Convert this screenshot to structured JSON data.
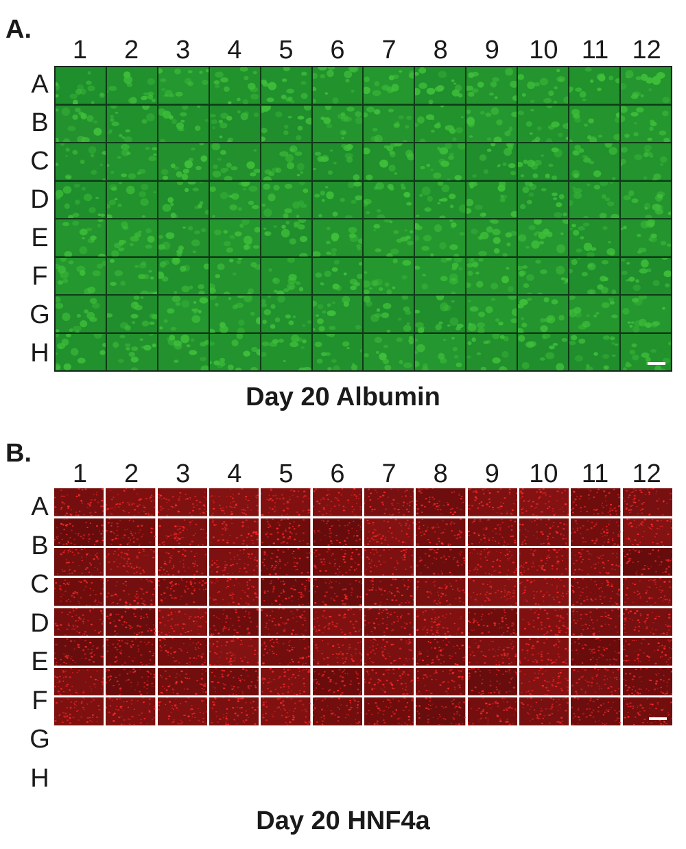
{
  "columns": [
    "1",
    "2",
    "3",
    "4",
    "5",
    "6",
    "7",
    "8",
    "9",
    "10",
    "11",
    "12"
  ],
  "rows": [
    "A",
    "B",
    "C",
    "D",
    "E",
    "F",
    "G",
    "H"
  ],
  "panels": [
    {
      "letter": "A.",
      "caption": "Day 20 Albumin",
      "stain_color": "#3fbf3a",
      "background_color": "#1d8a2c",
      "gridline_color": "#15261a"
    },
    {
      "letter": "B.",
      "caption": "Day 20 HNF4a",
      "stain_color": "#ff2a2a",
      "background_color": "#5a0a0a",
      "gridline_color": "#ffffff"
    }
  ],
  "icons": {
    "scale_bar": "scale-bar-icon"
  }
}
